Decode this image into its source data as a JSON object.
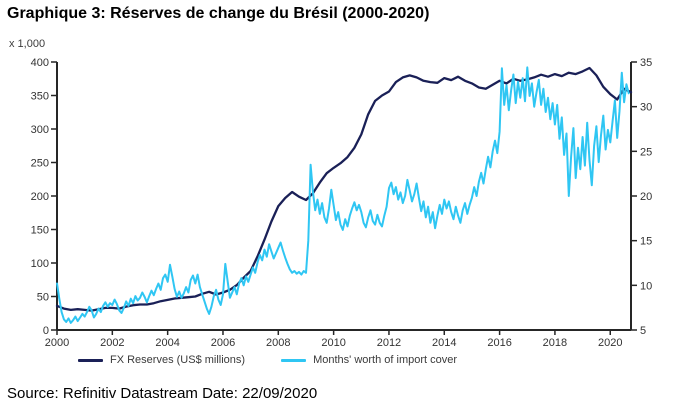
{
  "title": "Graphique 3: Réserves de change du Brésil (2000-2020)",
  "source_note": "Source: Refinitiv Datastream Date: 22/09/2020",
  "colors": {
    "fx_reserves_line": "#1a2057",
    "import_cover_line": "#2fc6f3",
    "axis": "#262626",
    "tick_text": "#333333"
  },
  "chart_data": {
    "type": "line",
    "title": "Graphique 3: Réserves de change du Brésil (2000-2020)",
    "x_axis": {
      "range": [
        2000,
        2020.75
      ],
      "ticks": [
        2000,
        2002,
        2004,
        2006,
        2008,
        2010,
        2012,
        2014,
        2016,
        2018,
        2020
      ],
      "grid": false
    },
    "y_axis_left": {
      "unit_label": "x 1,000",
      "range": [
        0,
        400
      ],
      "ticks": [
        0,
        50,
        100,
        150,
        200,
        250,
        300,
        350,
        400
      ]
    },
    "y_axis_right": {
      "range": [
        5,
        35
      ],
      "ticks": [
        5,
        10,
        15,
        20,
        25,
        30,
        35
      ]
    },
    "legend_position": "bottom",
    "series": [
      {
        "name": "FX Reserves (US$ millions)",
        "axis": "left",
        "color": "#1a2057",
        "stroke_width": 2.3,
        "start": 2000,
        "step_months": 3,
        "values": [
          36,
          32,
          30,
          31,
          30,
          29,
          31,
          33,
          33,
          32,
          35,
          37,
          38,
          38,
          40,
          43,
          45,
          47,
          48,
          49,
          50,
          54,
          57,
          53,
          56,
          60,
          67,
          78,
          88,
          110,
          135,
          162,
          185,
          197,
          206,
          199,
          194,
          204,
          220,
          234,
          242,
          249,
          258,
          272,
          292,
          322,
          342,
          350,
          356,
          370,
          377,
          380,
          377,
          372,
          370,
          369,
          376,
          373,
          378,
          372,
          368,
          362,
          360,
          366,
          372,
          368,
          375,
          372,
          374,
          377,
          381,
          378,
          382,
          379,
          384,
          382,
          386,
          391,
          380,
          363,
          352,
          344,
          360,
          355
        ]
      },
      {
        "name": "Months' worth of import cover",
        "axis": "right",
        "color": "#2fc6f3",
        "stroke_width": 2,
        "start": 2000,
        "step_months": 1,
        "values": [
          10.2,
          8.5,
          7.0,
          6.2,
          5.9,
          6.3,
          5.8,
          6.1,
          6.5,
          6.0,
          6.4,
          6.8,
          6.5,
          7.0,
          7.6,
          7.2,
          6.4,
          6.8,
          7.4,
          7.0,
          7.7,
          8.1,
          7.6,
          8.0,
          7.8,
          8.4,
          7.9,
          7.2,
          6.9,
          7.5,
          8.2,
          7.7,
          8.5,
          8.0,
          8.8,
          8.3,
          8.6,
          9.2,
          8.7,
          8.1,
          8.8,
          9.4,
          8.9,
          9.6,
          10.2,
          9.5,
          10.8,
          11.2,
          10.4,
          12.3,
          11.0,
          9.6,
          8.7,
          9.3,
          8.6,
          9.1,
          9.8,
          9.2,
          10.6,
          11.1,
          10.2,
          11.2,
          9.8,
          9.0,
          8.2,
          7.4,
          6.8,
          7.6,
          8.8,
          9.5,
          8.4,
          7.8,
          9.0,
          12.4,
          10.5,
          8.6,
          9.2,
          9.8,
          9.0,
          10.2,
          10.8,
          10.0,
          11.0,
          10.4,
          11.2,
          12.0,
          11.4,
          12.6,
          13.4,
          12.8,
          14.0,
          13.2,
          14.6,
          13.8,
          13.0,
          13.6,
          14.2,
          14.8,
          13.9,
          13.1,
          12.4,
          11.8,
          11.4,
          11.6,
          11.3,
          11.5,
          11.2,
          11.6,
          11.4,
          15.0,
          23.5,
          20.5,
          18.4,
          19.6,
          18.0,
          19.2,
          17.6,
          17.0,
          18.6,
          20.7,
          19.0,
          17.3,
          18.2,
          16.8,
          16.2,
          17.4,
          16.6,
          17.8,
          18.6,
          19.3,
          18.4,
          19.0,
          18.2,
          17.0,
          16.5,
          17.6,
          18.4,
          17.2,
          16.8,
          17.9,
          17.0,
          16.6,
          17.8,
          18.8,
          20.9,
          21.5,
          20.2,
          21.0,
          19.6,
          20.4,
          19.2,
          20.0,
          21.8,
          20.6,
          19.4,
          20.2,
          21.4,
          19.8,
          18.3,
          19.4,
          17.6,
          18.8,
          17.0,
          18.2,
          16.4,
          17.8,
          19.0,
          18.0,
          19.6,
          18.6,
          19.4,
          18.2,
          17.4,
          18.8,
          17.8,
          17.0,
          18.4,
          19.2,
          18.0,
          19.0,
          19.8,
          21.0,
          20.0,
          21.6,
          22.6,
          21.4,
          23.0,
          24.4,
          23.2,
          25.0,
          26.2,
          24.8,
          27.2,
          34.3,
          30.2,
          32.4,
          29.6,
          31.8,
          33.6,
          30.4,
          32.8,
          31.0,
          33.2,
          30.6,
          34.4,
          31.2,
          32.6,
          30.0,
          31.6,
          33.0,
          30.2,
          32.0,
          29.4,
          31.0,
          28.6,
          30.4,
          28.0,
          30.2,
          26.4,
          28.8,
          24.6,
          27.0,
          20.0,
          24.4,
          27.6,
          22.0,
          25.4,
          23.0,
          26.6,
          23.4,
          28.2,
          24.0,
          21.2,
          25.6,
          27.8,
          23.8,
          26.8,
          29.0,
          25.2,
          27.4,
          26.0,
          28.4,
          30.7,
          26.5,
          29.5,
          33.8,
          30.5,
          32.5,
          31.5
        ]
      }
    ]
  }
}
